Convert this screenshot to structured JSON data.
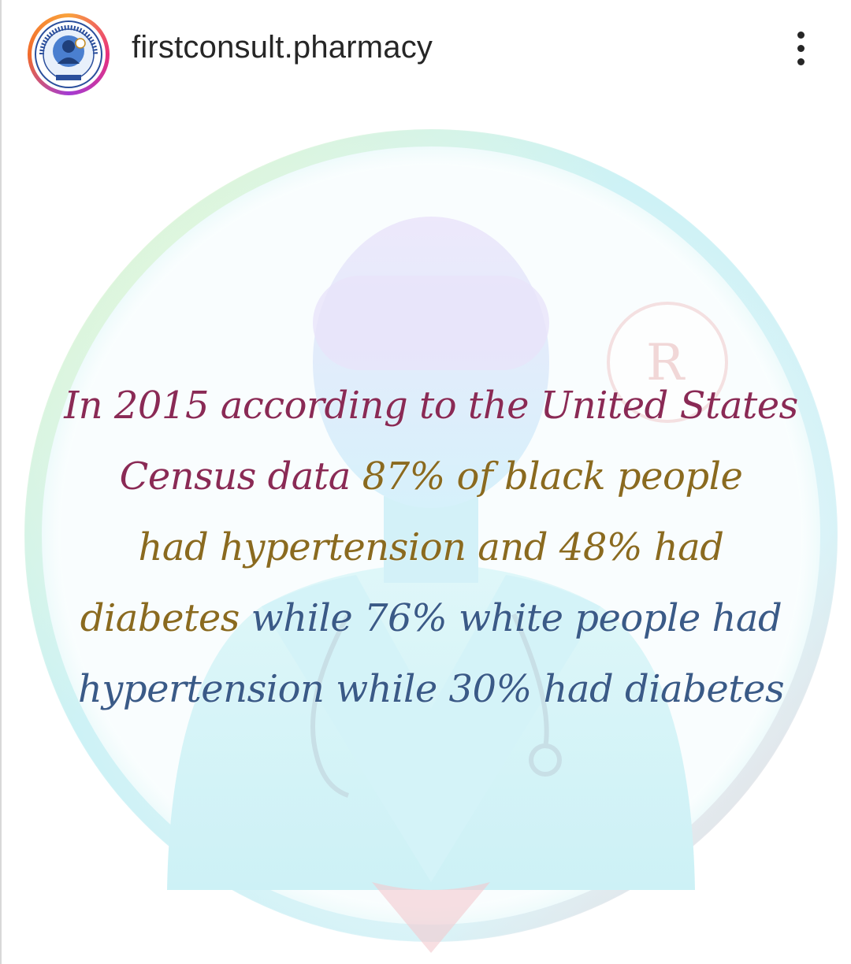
{
  "header": {
    "username": "firstconsult.pharmacy",
    "avatar_icon": "pharmacy-logo-icon",
    "more_icon": "more-vertical-icon"
  },
  "post": {
    "lines": [
      [
        {
          "text": "In 2015 according to the United States",
          "color": "maroon"
        }
      ],
      [
        {
          "text": "Census data ",
          "color": "maroon"
        },
        {
          "text": "87% of black people",
          "color": "gold"
        }
      ],
      [
        {
          "text": "had hypertension and 48% had",
          "color": "gold"
        }
      ],
      [
        {
          "text": "diabetes ",
          "color": "gold"
        },
        {
          "text": "while 76% white people had",
          "color": "blue"
        }
      ],
      [
        {
          "text": "hypertension while 30% had diabetes",
          "color": "blue"
        }
      ]
    ],
    "colors": {
      "maroon": "#8a2a55",
      "gold": "#8a6a1f",
      "blue": "#3a5a87"
    },
    "background_icon": "doctor-silhouette-icon"
  }
}
